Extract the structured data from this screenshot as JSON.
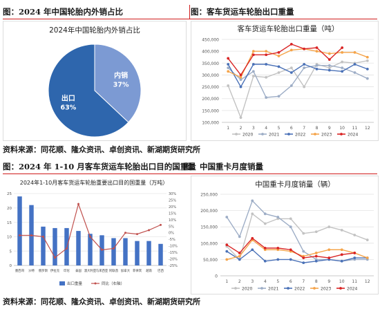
{
  "captions": {
    "top_left": "图：2024 年中国轮胎内外销占比",
    "top_right": "图：客车货运车轮胎出口重量",
    "bottom_left": "图：2024 年 1-10 月客车货运车轮胎出口目的国重量",
    "bottom_right": "图：中国重卡月度销量"
  },
  "sources": {
    "top": "资料来源：同花顺、隆众资讯、卓创资讯、新湖期货研究所",
    "bottom": "资料来源：同花顺、隆众资讯、卓创资讯、新湖期货研究所"
  },
  "chart_data": [
    {
      "id": "pie",
      "type": "pie",
      "title": "2024年中国轮胎内外销占比",
      "labels": [
        "内销",
        "出口"
      ],
      "values": [
        37,
        63
      ],
      "value_labels": [
        "37%",
        "63%"
      ],
      "colors": [
        "#7c9ad3",
        "#2e66ad"
      ]
    },
    {
      "id": "export_weight",
      "type": "line",
      "title": "客车货运车轮胎出口重量（吨）",
      "x": [
        "1",
        "2",
        "3",
        "4",
        "5",
        "6",
        "7",
        "8",
        "9",
        "10",
        "11",
        "12"
      ],
      "ylim": [
        100000,
        450000
      ],
      "yticks": [
        100000,
        150000,
        200000,
        250000,
        300000,
        350000,
        400000,
        450000
      ],
      "ytick_labels": [
        "100,000",
        "150,000",
        "200,000",
        "250,000",
        "300,000",
        "350,000",
        "400,000",
        "450,000"
      ],
      "series": [
        {
          "name": "2020",
          "color": "#c2c2c2",
          "values": [
            255000,
            120000,
            295000,
            290000,
            310000,
            330000,
            250000,
            345000,
            330000,
            355000,
            350000,
            360000
          ]
        },
        {
          "name": "2021",
          "color": "#9dadc6",
          "values": [
            330000,
            280000,
            315000,
            205000,
            210000,
            255000,
            330000,
            340000,
            340000,
            330000,
            310000,
            285000
          ]
        },
        {
          "name": "2022",
          "color": "#4a71b7",
          "values": [
            345000,
            250000,
            345000,
            345000,
            335000,
            310000,
            345000,
            325000,
            320000,
            315000,
            345000,
            325000
          ]
        },
        {
          "name": "2023",
          "color": "#f5a44a",
          "values": [
            315000,
            290000,
            400000,
            400000,
            380000,
            405000,
            410000,
            400000,
            390000,
            395000,
            395000,
            375000
          ]
        },
        {
          "name": "2024",
          "color": "#d92424",
          "values": [
            370000,
            300000,
            385000,
            385000,
            395000,
            430000,
            410000,
            415000,
            365000,
            415000,
            null,
            null
          ]
        }
      ]
    },
    {
      "id": "destinations",
      "type": "bar",
      "title": "2024年1-10月客车货运车轮胎重要出口目的国重量（万吨）",
      "categories": [
        "墨西哥",
        "沙特",
        "俄罗斯",
        "伊拉克",
        "印尼",
        "泰国",
        "澳大利亚",
        "马来西亚",
        "阿拉伯联合酋长国",
        "加拿大",
        "菲律宾",
        "越南",
        "巴西"
      ],
      "category_labels": [
        "墨西哥",
        "沙特",
        "俄罗斯",
        "伊拉克",
        "印尼",
        "泰国",
        "澳大利亚",
        "马来西亚",
        "阿联酋",
        "加拿大",
        "菲律宾",
        "越南",
        "巴西"
      ],
      "ylim": [
        0,
        25
      ],
      "yticks": [
        0,
        5,
        10,
        15,
        20,
        25
      ],
      "y2lim": [
        -25,
        30
      ],
      "y2ticks": [
        -25,
        -20,
        -15,
        -10,
        -5,
        0,
        5,
        10,
        15,
        20,
        25,
        30
      ],
      "y2tick_labels": [
        "-25%",
        "-20%",
        "-15%",
        "-10%",
        "-5%",
        "0%",
        "5%",
        "10%",
        "15%",
        "20%",
        "25%",
        "30%"
      ],
      "series": [
        {
          "name": "出口重量",
          "axis": "left",
          "color": "#4472c4",
          "values": [
            24,
            21,
            13.5,
            13,
            13,
            12,
            11,
            10.5,
            9.5,
            9.5,
            8.5,
            8.5,
            7.5
          ]
        },
        {
          "name": "同比（右轴）",
          "axis": "right",
          "color": "#c0504d",
          "values": [
            -2,
            -2,
            -3,
            -19,
            -12,
            22,
            -3,
            -13,
            -12,
            0,
            -1,
            2,
            6
          ]
        }
      ]
    },
    {
      "id": "truck_sales",
      "type": "line",
      "title": "中国重卡月度销量（辆）",
      "x": [
        "1",
        "2",
        "3",
        "4",
        "5",
        "6",
        "7",
        "8",
        "9",
        "10",
        "11",
        "12"
      ],
      "ylim": [
        0,
        250000
      ],
      "yticks": [
        0,
        50000,
        100000,
        150000,
        200000,
        250000
      ],
      "ytick_labels": [
        "0",
        "50,000",
        "100,000",
        "150,000",
        "200,000",
        "250,000"
      ],
      "series": [
        {
          "name": "2020",
          "color": "#c2c2c2",
          "values": [
            90000,
            50000,
            190000,
            160000,
            175000,
            175000,
            130000,
            135000,
            150000,
            140000,
            125000,
            110000
          ]
        },
        {
          "name": "2021",
          "color": "#9dadc6",
          "values": [
            180000,
            120000,
            230000,
            190000,
            180000,
            150000,
            75000,
            50000,
            50000,
            45000,
            50000,
            50000
          ]
        },
        {
          "name": "2022",
          "color": "#4a71b7",
          "values": [
            75000,
            50000,
            80000,
            45000,
            50000,
            50000,
            40000,
            45000,
            50000,
            45000,
            55000,
            55000
          ]
        },
        {
          "name": "2023",
          "color": "#f5a44a",
          "values": [
            50000,
            60000,
            110000,
            80000,
            80000,
            75000,
            60000,
            70000,
            80000,
            80000,
            70000,
            55000
          ]
        },
        {
          "name": "2024",
          "color": "#d92424",
          "values": [
            95000,
            70000,
            115000,
            85000,
            85000,
            80000,
            55000,
            60000,
            55000,
            65000,
            70000,
            null
          ]
        }
      ]
    }
  ]
}
